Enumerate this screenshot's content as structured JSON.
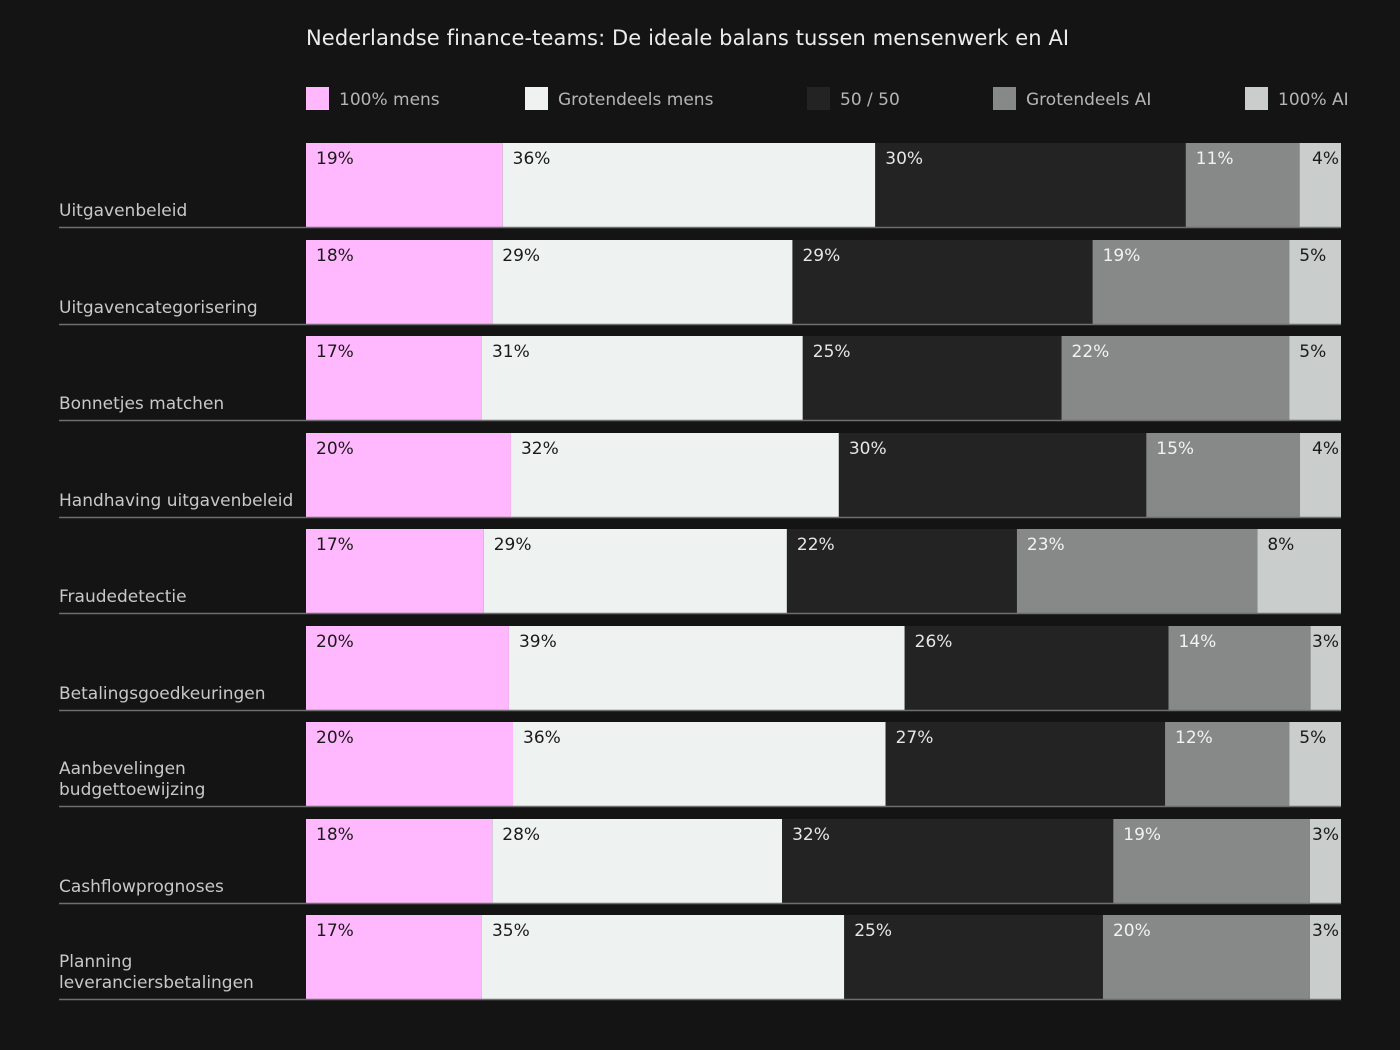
{
  "chart_data": {
    "type": "bar",
    "orientation": "horizontal",
    "stacked": true,
    "normalized_to_percent": true,
    "title": "Nederlandse finance-teams: De ideale balans tussen mensenwerk en AI",
    "legend_position": "top",
    "series": [
      {
        "name": "100% mens",
        "color": "#ffb8fd",
        "label_color": "#1a1a1a",
        "values": [
          19,
          18,
          17,
          20,
          17,
          20,
          20,
          18,
          17
        ]
      },
      {
        "name": "Grotendeels mens",
        "color": "#eef2f1",
        "label_color": "#1a1a1a",
        "values": [
          36,
          29,
          31,
          32,
          29,
          39,
          36,
          28,
          35
        ]
      },
      {
        "name": "50 / 50",
        "color": "#232323",
        "label_color": "#e6e6e6",
        "values": [
          30,
          29,
          25,
          30,
          22,
          26,
          27,
          32,
          25
        ]
      },
      {
        "name": "Grotendeels AI",
        "color": "#878989",
        "label_color": "#f2f2f2",
        "values": [
          11,
          19,
          22,
          15,
          23,
          14,
          12,
          19,
          20
        ]
      },
      {
        "name": "100% AI",
        "color": "#c9cdcc",
        "label_color": "#1a1a1a",
        "values": [
          4,
          5,
          5,
          4,
          8,
          3,
          5,
          3,
          3
        ]
      }
    ],
    "categories": [
      [
        "Uitgavenbeleid"
      ],
      [
        "Uitgavencategorisering"
      ],
      [
        "Bonnetjes matchen"
      ],
      [
        "Handhaving uitgavenbeleid"
      ],
      [
        "Fraudedetectie"
      ],
      [
        "Betalingsgoedkeuringen"
      ],
      [
        "Aanbevelingen",
        "budgettoewijzing"
      ],
      [
        "Cashflowprognoses"
      ],
      [
        "Planning",
        "leveranciersbetalingen"
      ]
    ],
    "value_suffix": "%",
    "grid": false
  },
  "colors": {
    "background": "#141414",
    "title": "#ececec",
    "category_label": "#c8c8c8",
    "legend_label": "#b5b5b5",
    "row_rule": "#6e6e6e"
  }
}
